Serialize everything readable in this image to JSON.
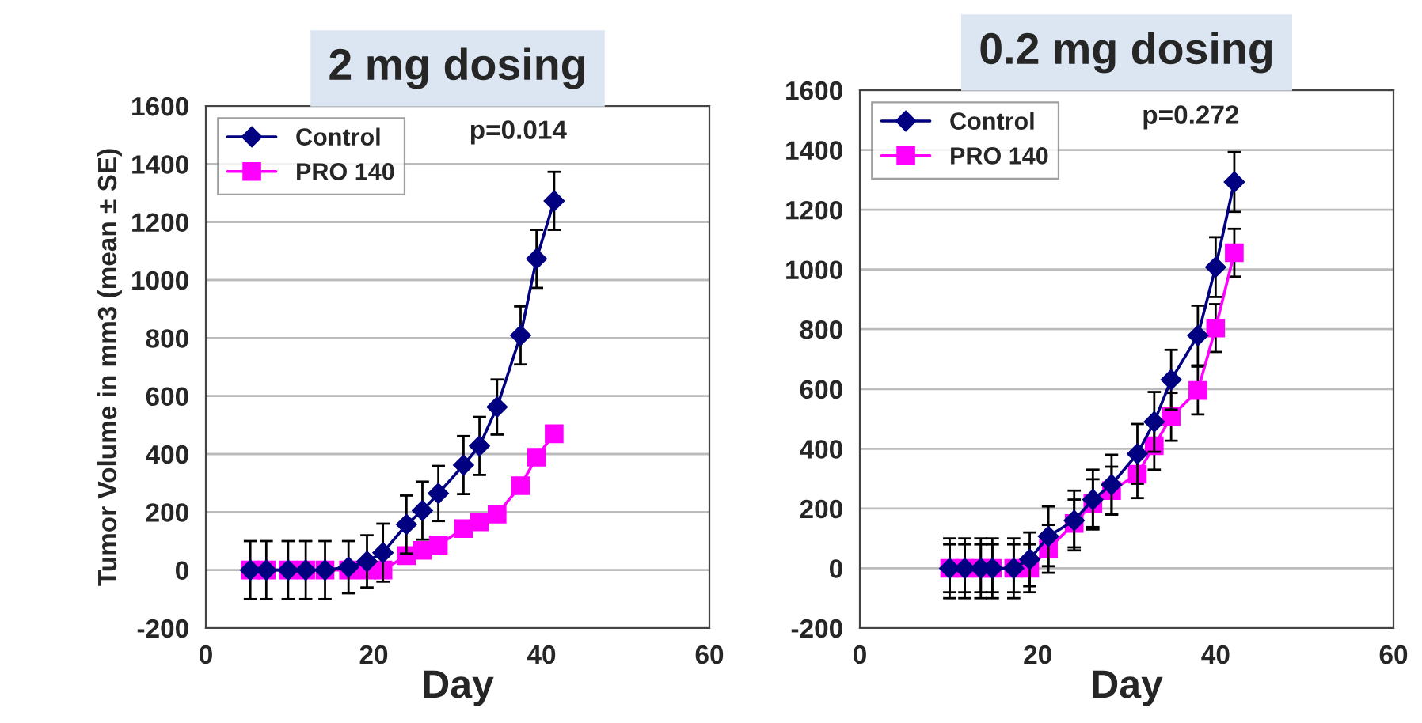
{
  "chart_data": [
    {
      "type": "line",
      "title": "2 mg dosing",
      "xlabel": "Day",
      "ylabel": "Tumor Volume in mm3 (mean ± SE)",
      "xlim": [
        0,
        60
      ],
      "xticks": [
        0,
        20,
        40,
        60
      ],
      "ylim": [
        -200,
        1600
      ],
      "yticks": [
        -200,
        0,
        200,
        400,
        600,
        800,
        1000,
        1200,
        1400,
        1600
      ],
      "grid": "y",
      "legend": "top left",
      "annotations": [
        "p=0.014"
      ],
      "series": [
        {
          "name": "Control",
          "color": "#000080",
          "marker": "diamond",
          "x": [
            5.3,
            7.2,
            9.8,
            11.9,
            14.2,
            17,
            19.2,
            21.1,
            23.9,
            25.8,
            27.7,
            30.7,
            32.6,
            34.7,
            37.5,
            39.4,
            41.5
          ],
          "values": [
            0,
            0,
            0,
            0,
            0,
            10,
            30,
            60,
            157,
            205,
            264,
            362,
            428,
            562,
            809,
            1073,
            1273
          ],
          "errors": [
            100,
            100,
            100,
            100,
            100,
            90,
            90,
            100,
            100,
            100,
            95,
            100,
            100,
            95,
            100,
            100,
            100
          ]
        },
        {
          "name": "PRO 140",
          "color": "#ff00ff",
          "marker": "square",
          "x": [
            5.3,
            7.2,
            9.8,
            11.9,
            14.2,
            17,
            19.2,
            21.1,
            23.9,
            25.8,
            27.7,
            30.7,
            32.6,
            34.7,
            37.5,
            39.4,
            41.5
          ],
          "values": [
            0,
            0,
            0,
            0,
            0,
            0,
            0,
            0,
            50,
            68,
            86,
            143,
            166,
            193,
            291,
            389,
            470
          ]
        }
      ]
    },
    {
      "type": "line",
      "title": "0.2 mg dosing",
      "xlabel": "Day",
      "xlim": [
        0,
        60
      ],
      "xticks": [
        0,
        20,
        40,
        60
      ],
      "ylim": [
        -200,
        1600
      ],
      "yticks": [
        -200,
        0,
        200,
        400,
        600,
        800,
        1000,
        1200,
        1400,
        1600
      ],
      "grid": "y",
      "legend": "top left",
      "annotations": [
        "p=0.272"
      ],
      "series": [
        {
          "name": "Control",
          "color": "#000080",
          "marker": "diamond",
          "x": [
            10.1,
            11.8,
            13.6,
            14.9,
            17.3,
            19.1,
            21.2,
            24.1,
            26.2,
            28.3,
            31.2,
            33.1,
            35.0,
            38.0,
            40.0,
            42.1
          ],
          "values": [
            0,
            0,
            0,
            0,
            0,
            30,
            107,
            160,
            230,
            280,
            383,
            490,
            631,
            779,
            1008,
            1293
          ],
          "errors": [
            100,
            100,
            100,
            100,
            100,
            90,
            100,
            100,
            100,
            100,
            100,
            100,
            100,
            100,
            100,
            100
          ]
        },
        {
          "name": "PRO 140",
          "color": "#ff00ff",
          "marker": "square",
          "x": [
            10.1,
            11.8,
            13.6,
            14.9,
            17.3,
            19.1,
            21.2,
            24.1,
            26.2,
            28.3,
            31.2,
            33.1,
            35.0,
            38.0,
            40.0,
            42.1
          ],
          "values": [
            0,
            0,
            0,
            0,
            0,
            0,
            65,
            150,
            218,
            260,
            315,
            410,
            507,
            595,
            804,
            1056
          ],
          "errors": [
            80,
            80,
            80,
            80,
            80,
            80,
            80,
            80,
            80,
            80,
            80,
            80,
            80,
            80,
            80,
            80
          ]
        }
      ]
    }
  ]
}
